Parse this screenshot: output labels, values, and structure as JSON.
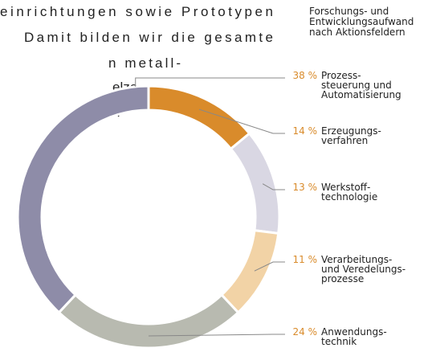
{
  "document": {
    "paragraph_lines": [
      "einrichtungen sowie Prototypen",
      "Damit bilden wir die gesamte",
      "n metall-",
      "elze",
      "n"
    ]
  },
  "chart_data": {
    "type": "donut",
    "title": "Forschungs- und Entwicklungsaufwand nach Aktionsfeldern",
    "categories": [
      "Erzeugungs-\nverfahren",
      "Werkstoff-\ntechnologie",
      "Verarbeitungs-\nund Veredelungs-\nprozesse",
      "Anwendungs-\ntechnik",
      "Prozess-\nsteuerung und\nAutomatisierung"
    ],
    "values": [
      14,
      13,
      11,
      24,
      38
    ],
    "value_labels": [
      "14 %",
      "13 %",
      "11 %",
      "24 %",
      "38 %"
    ],
    "colors": [
      "#d98b2b",
      "#d9d7e3",
      "#f2d3a6",
      "#b8bab0",
      "#8e8ca8"
    ]
  }
}
